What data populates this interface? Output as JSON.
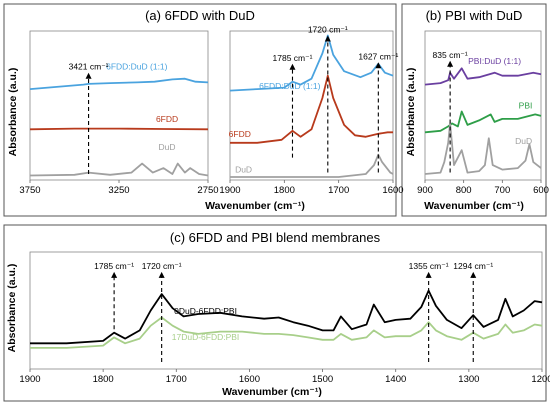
{
  "colors": {
    "black": "#000000",
    "blue": "#4aa3df",
    "red": "#b83a1c",
    "brown": "#8b3a1a",
    "gray": "#a0a0a0",
    "purple": "#6a3fa0",
    "green": "#2e9e48",
    "lightgreen": "#a8cf8a"
  },
  "chart_data": [
    {
      "id": "a-left",
      "type": "line",
      "title": "(a) 6FDD with DuD",
      "ylabel": "Absorbance (a.u.)",
      "xlabel": "",
      "xlim": [
        3750,
        2750
      ],
      "x_ticks": [
        3750,
        3250,
        2750
      ],
      "ylim": [
        0,
        1
      ],
      "grid": false,
      "annotations": [
        {
          "text": "3421 cm⁻¹",
          "x": 3421,
          "y_from": 0.04,
          "y_to": 0.72
        }
      ],
      "series": [
        {
          "name": "6FDD:DuD (1:1)",
          "color": "blue",
          "label_x": 3150,
          "label_y": 0.74,
          "x": [
            3750,
            3600,
            3450,
            3421,
            3300,
            3150,
            3050,
            2950,
            2880,
            2820,
            2750
          ],
          "y": [
            0.61,
            0.625,
            0.64,
            0.645,
            0.65,
            0.655,
            0.66,
            0.675,
            0.68,
            0.66,
            0.655
          ]
        },
        {
          "name": "6FDD",
          "color": "red",
          "label_x": 2980,
          "label_y": 0.39,
          "x": [
            3750,
            3500,
            3250,
            3000,
            2750
          ],
          "y": [
            0.34,
            0.345,
            0.345,
            0.342,
            0.34
          ]
        },
        {
          "name": "DuD",
          "color": "gray",
          "label_x": 2980,
          "label_y": 0.2,
          "x": [
            3750,
            3500,
            3421,
            3300,
            3180,
            3120,
            3060,
            3000,
            2950,
            2920,
            2880,
            2850,
            2800,
            2750
          ],
          "y": [
            0.03,
            0.035,
            0.05,
            0.035,
            0.05,
            0.11,
            0.05,
            0.08,
            0.04,
            0.11,
            0.05,
            0.08,
            0.04,
            0.03
          ]
        }
      ]
    },
    {
      "id": "a-right",
      "type": "line",
      "xlabel": "",
      "xlim": [
        1900,
        1600
      ],
      "x_ticks": [
        1900,
        1800,
        1700,
        1600
      ],
      "ylim": [
        0,
        1
      ],
      "grid": false,
      "annotations": [
        {
          "text": "1785 cm⁻¹",
          "x": 1785,
          "y_from": 0.15,
          "y_to": 0.78
        },
        {
          "text": "1720 cm⁻¹",
          "x": 1720,
          "y_from": 0.05,
          "y_to": 0.97
        },
        {
          "text": "1627 cm⁻¹",
          "x": 1627,
          "y_from": 0.05,
          "y_to": 0.79
        }
      ],
      "series": [
        {
          "name": "6FDD:DuD (1:1)",
          "color": "blue",
          "label_x": 1790,
          "label_y": 0.61,
          "x": [
            1900,
            1850,
            1800,
            1785,
            1770,
            1750,
            1730,
            1720,
            1710,
            1690,
            1660,
            1640,
            1627,
            1615,
            1600
          ],
          "y": [
            0.6,
            0.61,
            0.62,
            0.66,
            0.64,
            0.68,
            0.85,
            0.97,
            0.84,
            0.73,
            0.69,
            0.72,
            0.78,
            0.72,
            0.7
          ]
        },
        {
          "name": "6FDD",
          "color": "red",
          "label_x": 1882,
          "label_y": 0.29,
          "x": [
            1900,
            1850,
            1805,
            1785,
            1770,
            1750,
            1730,
            1720,
            1710,
            1690,
            1670,
            1650,
            1627,
            1610,
            1600
          ],
          "y": [
            0.25,
            0.25,
            0.27,
            0.33,
            0.29,
            0.34,
            0.55,
            0.7,
            0.55,
            0.37,
            0.3,
            0.29,
            0.31,
            0.32,
            0.32
          ]
        },
        {
          "name": "DuD",
          "color": "gray",
          "label_x": 1875,
          "label_y": 0.05,
          "x": [
            1900,
            1800,
            1740,
            1700,
            1650,
            1635,
            1627,
            1620,
            1605,
            1600
          ],
          "y": [
            0.02,
            0.02,
            0.02,
            0.02,
            0.04,
            0.1,
            0.17,
            0.12,
            0.05,
            0.04
          ]
        }
      ]
    },
    {
      "id": "b",
      "type": "line",
      "title": "(b) PBI with DuD",
      "ylabel": "Absorbance (a.u.)",
      "xlabel": "Wavenumber (cm⁻¹)",
      "xlim": [
        900,
        600
      ],
      "x_ticks": [
        900,
        800,
        700,
        600
      ],
      "ylim": [
        0,
        1
      ],
      "grid": false,
      "annotations": [
        {
          "text": "835 cm⁻¹",
          "x": 835,
          "y_from": 0.05,
          "y_to": 0.8
        }
      ],
      "series": [
        {
          "name": "PBI:DuD (1:1)",
          "color": "purple",
          "label_x": 720,
          "label_y": 0.78,
          "x": [
            900,
            860,
            840,
            835,
            825,
            805,
            790,
            760,
            720,
            700,
            660,
            620,
            600
          ],
          "y": [
            0.64,
            0.65,
            0.67,
            0.72,
            0.68,
            0.75,
            0.68,
            0.69,
            0.72,
            0.7,
            0.7,
            0.72,
            0.71
          ]
        },
        {
          "name": "PBI",
          "color": "green",
          "label_x": 640,
          "label_y": 0.48,
          "x": [
            900,
            860,
            840,
            830,
            815,
            805,
            790,
            760,
            730,
            720,
            700,
            660,
            630,
            615,
            600
          ],
          "y": [
            0.32,
            0.33,
            0.36,
            0.38,
            0.36,
            0.46,
            0.37,
            0.4,
            0.44,
            0.39,
            0.41,
            0.41,
            0.43,
            0.44,
            0.43
          ]
        },
        {
          "name": "DuD",
          "color": "gray",
          "label_x": 645,
          "label_y": 0.24,
          "x": [
            900,
            860,
            850,
            840,
            835,
            825,
            805,
            790,
            760,
            745,
            735,
            725,
            700,
            660,
            640,
            630,
            620,
            600
          ],
          "y": [
            0.04,
            0.05,
            0.12,
            0.25,
            0.38,
            0.1,
            0.2,
            0.05,
            0.06,
            0.1,
            0.28,
            0.1,
            0.07,
            0.08,
            0.13,
            0.24,
            0.12,
            0.08
          ]
        }
      ]
    },
    {
      "id": "c",
      "type": "line",
      "title": "(c) 6FDD and PBI blend membranes",
      "ylabel": "Absorbance (a.u.)",
      "xlabel": "Wavenumber (cm⁻¹)",
      "xlim": [
        1900,
        1200
      ],
      "x_ticks": [
        1900,
        1800,
        1700,
        1600,
        1500,
        1400,
        1300,
        1200
      ],
      "ylim": [
        0,
        1
      ],
      "grid": false,
      "annotations": [
        {
          "text": "1785 cm⁻¹",
          "x": 1785,
          "y_from": 0.34,
          "y_to": 0.83
        },
        {
          "text": "1720 cm⁻¹",
          "x": 1720,
          "y_from": 0.06,
          "y_to": 0.83
        },
        {
          "text": "1355 cm⁻¹",
          "x": 1355,
          "y_from": 0.06,
          "y_to": 0.83
        },
        {
          "text": "1294 cm⁻¹",
          "x": 1294,
          "y_from": 0.06,
          "y_to": 0.83
        }
      ],
      "series": [
        {
          "name": "0DuD-6FDD:PBI",
          "color": "black",
          "label_x": 1660,
          "label_y": 0.47,
          "x": [
            1900,
            1850,
            1800,
            1785,
            1770,
            1750,
            1735,
            1720,
            1705,
            1690,
            1670,
            1640,
            1610,
            1580,
            1560,
            1540,
            1520,
            1500,
            1485,
            1475,
            1460,
            1440,
            1430,
            1415,
            1400,
            1380,
            1365,
            1355,
            1345,
            1330,
            1310,
            1294,
            1280,
            1260,
            1250,
            1240,
            1225,
            1210,
            1200
          ],
          "y": [
            0.22,
            0.22,
            0.24,
            0.31,
            0.26,
            0.33,
            0.5,
            0.64,
            0.52,
            0.45,
            0.47,
            0.48,
            0.45,
            0.43,
            0.44,
            0.4,
            0.37,
            0.33,
            0.33,
            0.45,
            0.34,
            0.38,
            0.55,
            0.4,
            0.42,
            0.43,
            0.53,
            0.67,
            0.54,
            0.42,
            0.35,
            0.46,
            0.36,
            0.42,
            0.6,
            0.45,
            0.5,
            0.58,
            0.57
          ]
        },
        {
          "name": "17DuD-6FDD:PBI",
          "color": "lightgreen",
          "label_x": 1660,
          "label_y": 0.25,
          "x": [
            1900,
            1850,
            1800,
            1785,
            1770,
            1750,
            1735,
            1720,
            1705,
            1690,
            1670,
            1640,
            1610,
            1580,
            1560,
            1540,
            1520,
            1500,
            1485,
            1475,
            1460,
            1440,
            1430,
            1415,
            1400,
            1380,
            1365,
            1355,
            1345,
            1330,
            1310,
            1294,
            1280,
            1260,
            1250,
            1240,
            1225,
            1210,
            1200
          ],
          "y": [
            0.18,
            0.18,
            0.2,
            0.27,
            0.22,
            0.26,
            0.37,
            0.44,
            0.37,
            0.32,
            0.3,
            0.32,
            0.32,
            0.3,
            0.3,
            0.29,
            0.27,
            0.25,
            0.25,
            0.3,
            0.25,
            0.27,
            0.33,
            0.27,
            0.28,
            0.28,
            0.33,
            0.4,
            0.33,
            0.28,
            0.25,
            0.31,
            0.26,
            0.3,
            0.38,
            0.31,
            0.33,
            0.38,
            0.37
          ]
        }
      ]
    }
  ],
  "panel_a_xlabel": "Wavenumber (cm⁻¹)"
}
